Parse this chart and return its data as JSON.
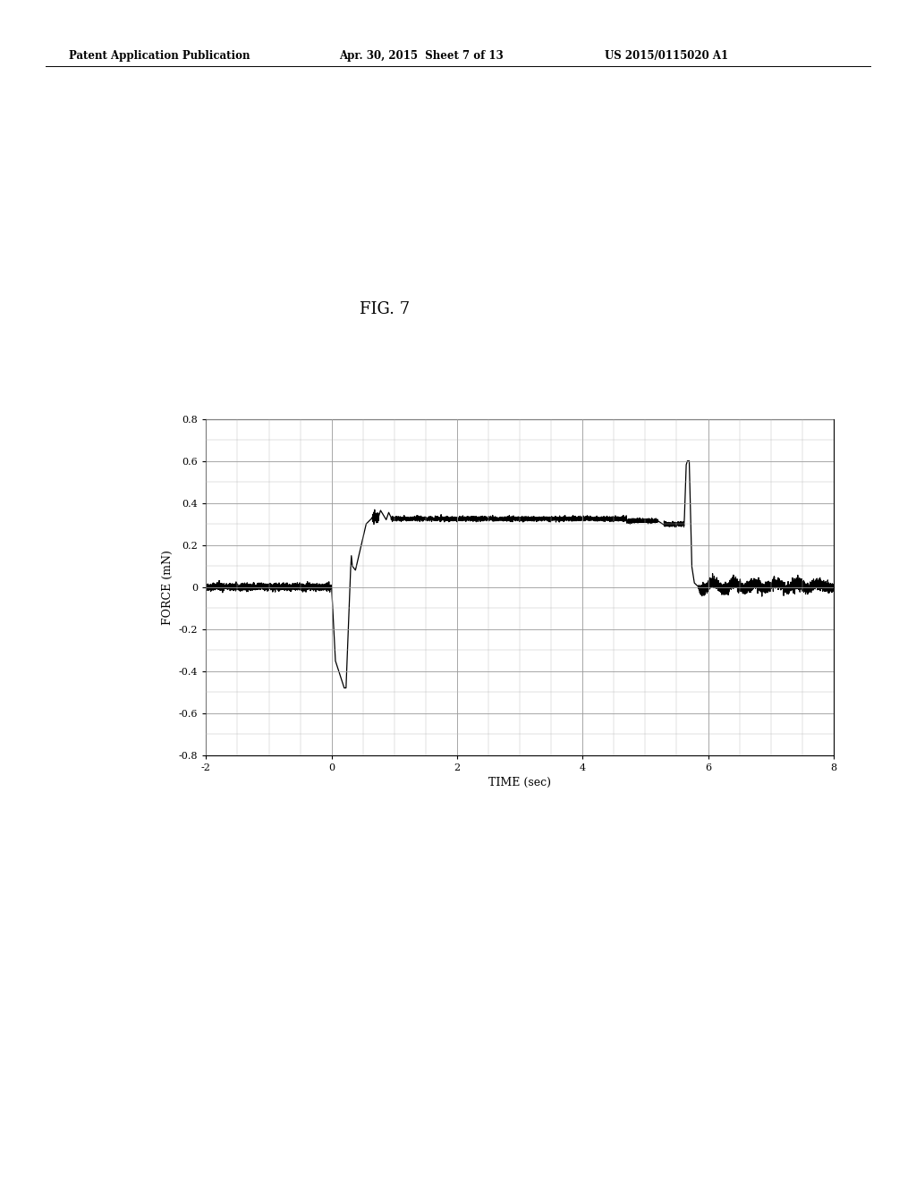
{
  "title": "FIG. 7",
  "xlabel": "TIME (sec)",
  "ylabel": "FORCE (mN)",
  "xlim": [
    -2,
    8
  ],
  "ylim": [
    -0.8,
    0.8
  ],
  "xticks": [
    -2,
    0,
    2,
    4,
    6,
    8
  ],
  "yticks": [
    -0.8,
    -0.6,
    -0.4,
    -0.2,
    0,
    0.2,
    0.4,
    0.6,
    0.8
  ],
  "ytick_labels": [
    "-0.8",
    "-0.6",
    "-0.4",
    "-0.2",
    "0",
    "0.2",
    "0.4",
    "0.6",
    "0.8"
  ],
  "xtick_labels": [
    "-2",
    "0",
    "2",
    "4",
    "6",
    "8"
  ],
  "line_color": "#000000",
  "background_color": "#ffffff",
  "header_left": "Patent Application Publication",
  "header_center": "Apr. 30, 2015  Sheet 7 of 13",
  "header_right": "US 2015/0115020 A1",
  "fig_label": "FIG. 7",
  "grid_color": "#999999",
  "grid_minor_color": "#bbbbbb"
}
